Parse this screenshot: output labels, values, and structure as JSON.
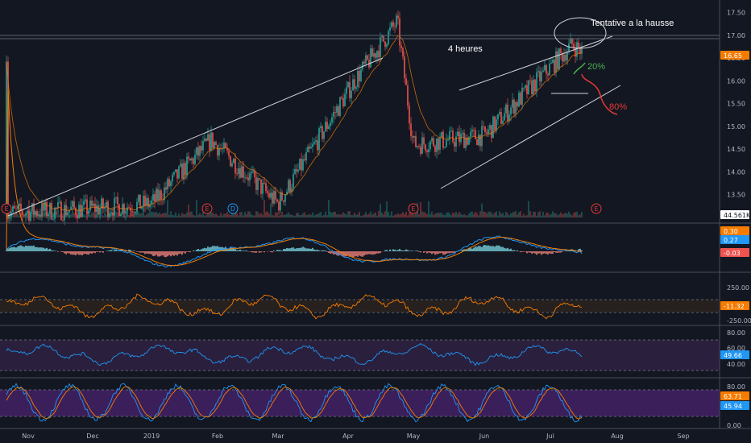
{
  "colors": {
    "background": "#131722",
    "up": "#26a69a",
    "down": "#ef5350",
    "grid": "#3a3e4a",
    "axis_text": "#b2b5be",
    "price_tag": "#f57c00",
    "volume_tag": "#ffffff",
    "macd_line": "#2196f3",
    "macd_signal": "#f57c00",
    "cci_line": "#f57c00",
    "rsi_line": "#2196f3",
    "stoch_k": "#2196f3",
    "stoch_d": "#f57c00",
    "rsi_band": "#2a1f3d",
    "stoch_band": "#3b1f5a",
    "annotation_green": "#4caf50",
    "annotation_red": "#e53935"
  },
  "annotations": {
    "four_hours": "4 heures",
    "tentative": "Tentative a la hausse",
    "pct_20": "20%",
    "pct_80": "80%"
  },
  "event_markers": {
    "earnings_label": "E",
    "dividend_label": "D"
  },
  "tags": {
    "price": "16.65",
    "volume": "44.561K",
    "macd_1": "0.30",
    "macd_2": "0.27",
    "macd_hist": "-0.03",
    "cci": "-11.32",
    "rsi": "49.66",
    "stoch_k": "63.71",
    "stoch_d": "45.94"
  },
  "chart_data": [
    {
      "type": "candlestick",
      "title": "",
      "x_tick_labels": [
        "Nov",
        "Dec",
        "2019",
        "Feb",
        "Mar",
        "Apr",
        "May",
        "Jun",
        "Jul",
        "Aug",
        "Sep"
      ],
      "y_tick_labels": [
        "13.50",
        "14.00",
        "14.50",
        "15.00",
        "15.50",
        "16.00",
        "16.50",
        "17.00",
        "17.50"
      ],
      "ylim": [
        13.0,
        17.6
      ],
      "last_price": 16.65,
      "grid": false,
      "key_points": [
        {
          "x": "Nov",
          "close": 13.1
        },
        {
          "x": "Dec",
          "close": 13.2
        },
        {
          "x": "2019",
          "close": 13.3
        },
        {
          "x": "Feb",
          "close": 14.7
        },
        {
          "x": "Mar",
          "close": 13.3
        },
        {
          "x": "Apr",
          "close": 16.0
        },
        {
          "x": "Apr (late)",
          "close": 17.3
        },
        {
          "x": "May",
          "close": 14.6
        },
        {
          "x": "Jun",
          "close": 14.8
        },
        {
          "x": "Jul",
          "close": 16.8
        },
        {
          "x": "Jul (mid)",
          "close": 16.65
        }
      ]
    },
    {
      "type": "macd",
      "series": [
        {
          "name": "",
          "last": 0.3
        },
        {
          "name": "",
          "last": 0.27
        },
        {
          "name": "",
          "last": -0.03
        }
      ]
    },
    {
      "type": "cci",
      "y_tick_labels": [
        "250.00",
        "-250.00"
      ],
      "last": -11.32
    },
    {
      "type": "rsi",
      "y_tick_labels": [
        "80.00",
        "60.00",
        "40.00"
      ],
      "last": 49.66
    },
    {
      "type": "stochastic",
      "y_tick_labels": [
        "80.00",
        "0.00"
      ],
      "series": [
        {
          "name": "",
          "last": 63.71
        },
        {
          "name": "",
          "last": 45.94
        }
      ]
    }
  ]
}
